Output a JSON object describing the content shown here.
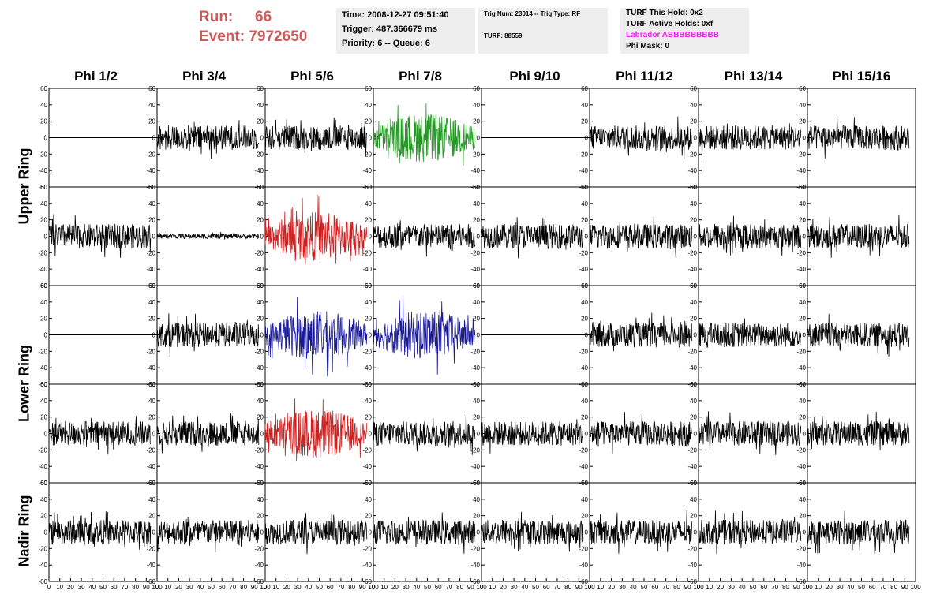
{
  "run": {
    "label": "Run:",
    "value": "66"
  },
  "event": {
    "label": "Event:",
    "value": "7972650"
  },
  "time_box": {
    "time": "Time: 2008-12-27 09:51:40",
    "trigger": "Trigger: 487.366679 ms",
    "priority": "Priority: 6 -- Queue: 6"
  },
  "trig_box": {
    "trig": "Trig Num: 23014 -- Trig Type: RF",
    "turf": "TURF: 88559"
  },
  "turf_box": {
    "this_hold": "TURF This Hold: 0x2",
    "active_holds": "TURF Active Holds: 0xf",
    "labrador": "Labrador ABBBBBBBBB",
    "phi_mask": "Phi Mask: 0"
  },
  "columns": [
    "Phi 1/2",
    "Phi 3/4",
    "Phi 5/6",
    "Phi 7/8",
    "Phi 9/10",
    "Phi 11/12",
    "Phi 13/14",
    "Phi 15/16"
  ],
  "rings": [
    "Upper Ring",
    "Lower Ring",
    "Nadir Ring"
  ],
  "colors": {
    "run_text": "#d05a5a",
    "labrador": "#ee22ee",
    "trace": "#000000",
    "green": "#229922",
    "red": "#cc2222",
    "blue": "#1a1a99",
    "info_bg": "#eeeeee"
  },
  "chart_data": {
    "type": "line",
    "rows": 5,
    "cols": 8,
    "ylim": [
      -60,
      60
    ],
    "xlim": [
      0,
      100
    ],
    "y_ticks": [
      60,
      40,
      20,
      0,
      -20,
      -40,
      -60
    ],
    "y_tick_labels": [
      "60",
      "40",
      "20",
      "0",
      "-20",
      "-40",
      "-60"
    ],
    "x_ticks": [
      0,
      10,
      20,
      30,
      40,
      50,
      60,
      70,
      80,
      90,
      100
    ],
    "x_tick_labels": [
      "0",
      "10",
      "20",
      "30",
      "40",
      "50",
      "60",
      "70",
      "80",
      "90",
      "100"
    ],
    "panels": [
      [
        "flat",
        "black",
        "black",
        "green",
        "flat",
        "black",
        "black",
        "black"
      ],
      [
        "black",
        "small",
        "red",
        "black",
        "black",
        "black",
        "black",
        "black"
      ],
      [
        "flat",
        "black",
        "blue",
        "blue",
        "flat",
        "black",
        "black",
        "black"
      ],
      [
        "black",
        "black",
        "red",
        "black",
        "black",
        "black",
        "black",
        "black"
      ],
      [
        "black",
        "black",
        "black",
        "black",
        "black",
        "black",
        "black",
        "black"
      ]
    ]
  }
}
